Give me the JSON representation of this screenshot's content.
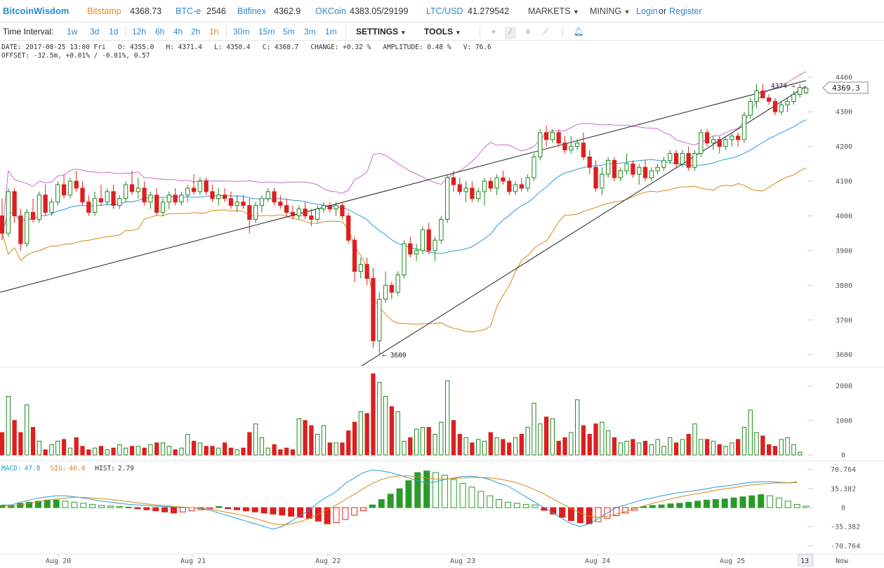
{
  "topbar": {
    "brand": "BitcoinWisdom",
    "exchanges": [
      {
        "name": "Bitstamp",
        "price": "4368.73",
        "color": "#e58a1c"
      },
      {
        "name": "BTC-e",
        "price": "2546",
        "color": "#2a8bd0"
      },
      {
        "name": "Bitfinex",
        "price": "4362.9",
        "color": "#2a8bd0"
      },
      {
        "name": "OKCoin",
        "price": "4383.05/29199",
        "color": "#2a8bd0"
      },
      {
        "name": "LTC/USD",
        "price": "41.279542",
        "color": "#2a8bd0"
      }
    ],
    "markets": "MARKETS",
    "mining": "MINING",
    "login": "Login",
    "or": "or",
    "register": "Register"
  },
  "toolbar": {
    "label": "Time Interval:",
    "intervals": [
      "1w",
      "3d",
      "1d",
      "12h",
      "6h",
      "4h",
      "2h",
      "1h",
      "30m",
      "15m",
      "5m",
      "3m",
      "1m"
    ],
    "active_interval": "1h",
    "settings": "SETTINGS",
    "tools": "TOOLS",
    "icons": [
      "crosshair-icon",
      "line-tool-icon",
      "fibonacci-icon",
      "fan-tool-icon",
      "alarm-bell-icon"
    ]
  },
  "info": {
    "line1": "DATE: 2017-08-25 13:00 Fri   O: 4355.0   H: 4371.4   L: 4350.4   C: 4368.7   CHANGE: +0.32 %   AMPLITUDE: 0.48 %   V: 76.6",
    "line2": "OFFSET: -32.5m, +0.01% / -0.01%, 0.57"
  },
  "colors": {
    "up": "#1a8a1a",
    "down": "#dd1f1f",
    "bb_upper": "#c86dc8",
    "bb_middle": "#2a9ad8",
    "bb_lower": "#d48a10",
    "macd_line": "#2a9ad8",
    "signal_line": "#d48a10",
    "hist_up": "#2a9a2a",
    "hist_down": "#dd1f1f"
  },
  "price_axis": {
    "ticks": [
      3600,
      3700,
      3800,
      3900,
      4000,
      4100,
      4200,
      4300,
      4400
    ],
    "range": [
      3570,
      4430
    ],
    "current": "4369.3"
  },
  "volume_axis": {
    "ticks": [
      0,
      1000,
      2000
    ],
    "max": 2400
  },
  "macd_axis": {
    "ticks": [
      "70.764",
      "35.382",
      "0",
      "-35.382",
      "-70.764"
    ],
    "range": [
      -82,
      82
    ]
  },
  "x_axis": {
    "labels": [
      "Aug 20",
      "Aug 21",
      "Aug 22",
      "Aug 23",
      "Aug 24",
      "Aug 25"
    ],
    "right_labels": [
      "13",
      "Now"
    ]
  },
  "annotations": {
    "high_label": "4374",
    "low_label": "3600"
  },
  "indicators": {
    "macd_label": "MACD:",
    "macd_value": "47.8",
    "sig_label": "SIG:",
    "sig_value": "46.4",
    "hist_label": "HIST:",
    "hist_value": "2.79"
  },
  "chart_data": {
    "type": "candlestick",
    "title": "",
    "xlabel": "",
    "ylabel": "",
    "symbol_period": "1h",
    "ylim": [
      3570,
      4430
    ],
    "candles_ohlc": [
      [
        4000,
        4050,
        3930,
        3950
      ],
      [
        3950,
        4080,
        3940,
        4070
      ],
      [
        4070,
        4080,
        3980,
        4000
      ],
      [
        4000,
        4020,
        3900,
        3920
      ],
      [
        3920,
        4020,
        3910,
        4010
      ],
      [
        4010,
        4050,
        3980,
        3990
      ],
      [
        3990,
        4070,
        3980,
        4060
      ],
      [
        4060,
        4090,
        4000,
        4010
      ],
      [
        4010,
        4050,
        4000,
        4040
      ],
      [
        4040,
        4100,
        4030,
        4090
      ],
      [
        4090,
        4120,
        4050,
        4060
      ],
      [
        4060,
        4110,
        4050,
        4100
      ],
      [
        4100,
        4130,
        4070,
        4080
      ],
      [
        4080,
        4100,
        4030,
        4040
      ],
      [
        4040,
        4060,
        4000,
        4010
      ],
      [
        4010,
        4070,
        4000,
        4050
      ],
      [
        4050,
        4090,
        4030,
        4040
      ],
      [
        4040,
        4080,
        4030,
        4070
      ],
      [
        4070,
        4090,
        4020,
        4030
      ],
      [
        4030,
        4060,
        4020,
        4050
      ],
      [
        4050,
        4100,
        4040,
        4090
      ],
      [
        4090,
        4130,
        4060,
        4070
      ],
      [
        4070,
        4110,
        4050,
        4080
      ],
      [
        4080,
        4100,
        4030,
        4040
      ],
      [
        4040,
        4070,
        4020,
        4060
      ],
      [
        4060,
        4080,
        4000,
        4010
      ],
      [
        4010,
        4050,
        4000,
        4040
      ],
      [
        4040,
        4070,
        4020,
        4060
      ],
      [
        4060,
        4080,
        4030,
        4040
      ],
      [
        4040,
        4070,
        4030,
        4060
      ],
      [
        4060,
        4090,
        4040,
        4080
      ],
      [
        4080,
        4120,
        4060,
        4070
      ],
      [
        4070,
        4110,
        4060,
        4100
      ],
      [
        4100,
        4110,
        4060,
        4070
      ],
      [
        4070,
        4090,
        4040,
        4050
      ],
      [
        4050,
        4080,
        4030,
        4060
      ],
      [
        4060,
        4080,
        4040,
        4050
      ],
      [
        4050,
        4070,
        4020,
        4030
      ],
      [
        4030,
        4060,
        4010,
        4040
      ],
      [
        4040,
        4060,
        4020,
        4030
      ],
      [
        4030,
        4050,
        3950,
        3990
      ],
      [
        3990,
        4040,
        3980,
        4030
      ],
      [
        4030,
        4060,
        4010,
        4050
      ],
      [
        4050,
        4080,
        4040,
        4070
      ],
      [
        4070,
        4080,
        4030,
        4040
      ],
      [
        4040,
        4060,
        4020,
        4030
      ],
      [
        4030,
        4050,
        4000,
        4010
      ],
      [
        4010,
        4030,
        3990,
        4000
      ],
      [
        4000,
        4030,
        3990,
        4020
      ],
      [
        4020,
        4040,
        3990,
        4000
      ],
      [
        4000,
        4020,
        3970,
        3990
      ],
      [
        3990,
        4030,
        3980,
        4020
      ],
      [
        4020,
        4040,
        4010,
        4030
      ],
      [
        4030,
        4040,
        4010,
        4020
      ],
      [
        4020,
        4040,
        4000,
        4030
      ],
      [
        4030,
        4040,
        3990,
        4000
      ],
      [
        4000,
        4010,
        3920,
        3930
      ],
      [
        3930,
        3940,
        3810,
        3840
      ],
      [
        3840,
        3880,
        3820,
        3860
      ],
      [
        3860,
        3880,
        3800,
        3820
      ],
      [
        3820,
        3850,
        3620,
        3640
      ],
      [
        3640,
        3780,
        3600,
        3760
      ],
      [
        3760,
        3840,
        3750,
        3800
      ],
      [
        3800,
        3810,
        3760,
        3780
      ],
      [
        3780,
        3840,
        3770,
        3830
      ],
      [
        3830,
        3930,
        3820,
        3920
      ],
      [
        3920,
        3940,
        3880,
        3890
      ],
      [
        3890,
        3920,
        3870,
        3900
      ],
      [
        3900,
        3970,
        3890,
        3960
      ],
      [
        3960,
        3980,
        3890,
        3900
      ],
      [
        3900,
        3940,
        3870,
        3930
      ],
      [
        3930,
        4000,
        3920,
        3990
      ],
      [
        3990,
        4120,
        3980,
        4110
      ],
      [
        4110,
        4130,
        4070,
        4090
      ],
      [
        4090,
        4110,
        4060,
        4070
      ],
      [
        4070,
        4100,
        4040,
        4080
      ],
      [
        4080,
        4100,
        4040,
        4050
      ],
      [
        4050,
        4080,
        4040,
        4070
      ],
      [
        4070,
        4110,
        4030,
        4100
      ],
      [
        4100,
        4110,
        4070,
        4080
      ],
      [
        4080,
        4120,
        4060,
        4110
      ],
      [
        4110,
        4130,
        4090,
        4100
      ],
      [
        4100,
        4110,
        4060,
        4070
      ],
      [
        4070,
        4100,
        4060,
        4090
      ],
      [
        4090,
        4110,
        4070,
        4080
      ],
      [
        4080,
        4120,
        4070,
        4110
      ],
      [
        4110,
        4180,
        4100,
        4170
      ],
      [
        4170,
        4250,
        4160,
        4240
      ],
      [
        4240,
        4260,
        4200,
        4220
      ],
      [
        4220,
        4250,
        4210,
        4240
      ],
      [
        4240,
        4250,
        4200,
        4210
      ],
      [
        4210,
        4230,
        4180,
        4190
      ],
      [
        4190,
        4230,
        4180,
        4200
      ],
      [
        4200,
        4220,
        4190,
        4210
      ],
      [
        4210,
        4240,
        4160,
        4170
      ],
      [
        4170,
        4190,
        4120,
        4140
      ],
      [
        4140,
        4160,
        4070,
        4080
      ],
      [
        4080,
        4140,
        4060,
        4120
      ],
      [
        4120,
        4170,
        4110,
        4160
      ],
      [
        4160,
        4170,
        4100,
        4110
      ],
      [
        4110,
        4140,
        4100,
        4130
      ],
      [
        4130,
        4180,
        4120,
        4150
      ],
      [
        4150,
        4160,
        4110,
        4120
      ],
      [
        4120,
        4150,
        4090,
        4140
      ],
      [
        4140,
        4160,
        4100,
        4110
      ],
      [
        4110,
        4140,
        4100,
        4130
      ],
      [
        4130,
        4150,
        4120,
        4140
      ],
      [
        4140,
        4170,
        4130,
        4160
      ],
      [
        4160,
        4190,
        4150,
        4180
      ],
      [
        4180,
        4190,
        4140,
        4150
      ],
      [
        4150,
        4190,
        4140,
        4180
      ],
      [
        4180,
        4200,
        4130,
        4140
      ],
      [
        4140,
        4190,
        4130,
        4180
      ],
      [
        4180,
        4250,
        4170,
        4240
      ],
      [
        4240,
        4250,
        4200,
        4210
      ],
      [
        4210,
        4230,
        4190,
        4220
      ],
      [
        4220,
        4230,
        4180,
        4200
      ],
      [
        4200,
        4230,
        4190,
        4220
      ],
      [
        4220,
        4240,
        4200,
        4230
      ],
      [
        4230,
        4240,
        4200,
        4220
      ],
      [
        4220,
        4300,
        4210,
        4290
      ],
      [
        4290,
        4340,
        4280,
        4330
      ],
      [
        4330,
        4380,
        4310,
        4360
      ],
      [
        4360,
        4380,
        4340,
        4340
      ],
      [
        4340,
        4350,
        4320,
        4330
      ],
      [
        4330,
        4340,
        4290,
        4300
      ],
      [
        4300,
        4330,
        4290,
        4320
      ],
      [
        4320,
        4340,
        4300,
        4330
      ],
      [
        4330,
        4360,
        4320,
        4350
      ],
      [
        4350,
        4380,
        4340,
        4370
      ],
      [
        4355,
        4371.4,
        4350.4,
        4368.7
      ]
    ],
    "volumes": [
      650,
      1700,
      1000,
      650,
      1450,
      800,
      400,
      150,
      300,
      400,
      450,
      200,
      500,
      250,
      150,
      200,
      250,
      150,
      200,
      300,
      200,
      250,
      250,
      200,
      300,
      350,
      350,
      250,
      150,
      200,
      600,
      400,
      350,
      250,
      250,
      200,
      350,
      200,
      150,
      200,
      650,
      900,
      500,
      200,
      300,
      150,
      200,
      150,
      1050,
      1000,
      850,
      600,
      850,
      350,
      350,
      350,
      700,
      950,
      1250,
      1200,
      2350,
      2100,
      1700,
      1400,
      1250,
      400,
      500,
      750,
      800,
      800,
      600,
      950,
      2150,
      1000,
      600,
      500,
      350,
      450,
      400,
      650,
      500,
      450,
      350,
      500,
      600,
      800,
      1500,
      900,
      1100,
      1050,
      400,
      500,
      650,
      1600,
      850,
      600,
      900,
      950,
      700,
      500,
      350,
      400,
      450,
      350,
      400,
      300,
      450,
      250,
      500,
      350,
      450,
      600,
      900,
      450,
      450,
      400,
      300,
      250,
      350,
      450,
      800,
      1300,
      650,
      550,
      300,
      250,
      450,
      500,
      300,
      76.6
    ],
    "macd": [
      5,
      5,
      10,
      14,
      18,
      20,
      22,
      22,
      20,
      18,
      15,
      12,
      10,
      8,
      6,
      5,
      4,
      3,
      2,
      1,
      0,
      0,
      -2,
      -5,
      -10,
      -15,
      -20,
      -25,
      -30,
      -35,
      -40,
      -35,
      -25,
      -15,
      -5,
      10,
      20,
      30,
      45,
      55,
      65,
      70,
      68,
      65,
      60,
      55,
      50,
      45,
      48,
      52,
      55,
      58,
      58,
      56,
      52,
      45,
      40,
      30,
      20,
      10,
      0,
      -10,
      -20,
      -30,
      -35,
      -30,
      -20,
      -10,
      0,
      5,
      10,
      15,
      18,
      22,
      25,
      28,
      30,
      32,
      35,
      38,
      40,
      42,
      45,
      47,
      48,
      48,
      47,
      46,
      47.8
    ],
    "signal": [
      2,
      3,
      5,
      8,
      11,
      14,
      16,
      18,
      19,
      19,
      18,
      17,
      15,
      13,
      11,
      9,
      7,
      5,
      4,
      2,
      1,
      0,
      -1,
      -3,
      -6,
      -9,
      -12,
      -16,
      -20,
      -25,
      -30,
      -32,
      -30,
      -26,
      -20,
      -12,
      -4,
      5,
      15,
      25,
      35,
      45,
      52,
      57,
      59,
      59,
      57,
      55,
      53,
      53,
      54,
      55,
      56,
      56,
      55,
      53,
      50,
      46,
      40,
      33,
      25,
      16,
      7,
      -2,
      -10,
      -16,
      -18,
      -16,
      -12,
      -7,
      -2,
      3,
      8,
      12,
      16,
      20,
      23,
      26,
      29,
      32,
      35,
      37,
      40,
      42,
      44,
      45,
      46,
      46,
      46.4
    ],
    "hist": [
      4,
      4,
      8,
      10,
      12,
      14,
      14,
      12,
      10,
      8,
      6,
      4,
      3,
      2,
      1,
      -2,
      -4,
      -6,
      -8,
      -10,
      -8,
      -6,
      -4,
      -2,
      2,
      -2,
      -4,
      -6,
      -8,
      -10,
      -12,
      -14,
      -16,
      -18,
      -20,
      -25,
      -30,
      -28,
      -22,
      -14,
      -6,
      5,
      15,
      25,
      35,
      50,
      65,
      68,
      65,
      60,
      52,
      45,
      38,
      30,
      22,
      15,
      10,
      8,
      6,
      5,
      -5,
      -12,
      -18,
      -24,
      -28,
      -30,
      -26,
      -20,
      -15,
      -10,
      -5,
      2,
      4,
      5,
      7,
      8,
      10,
      12,
      14,
      15,
      16,
      18,
      20,
      22,
      24,
      22,
      18,
      12,
      6,
      2.79
    ]
  }
}
